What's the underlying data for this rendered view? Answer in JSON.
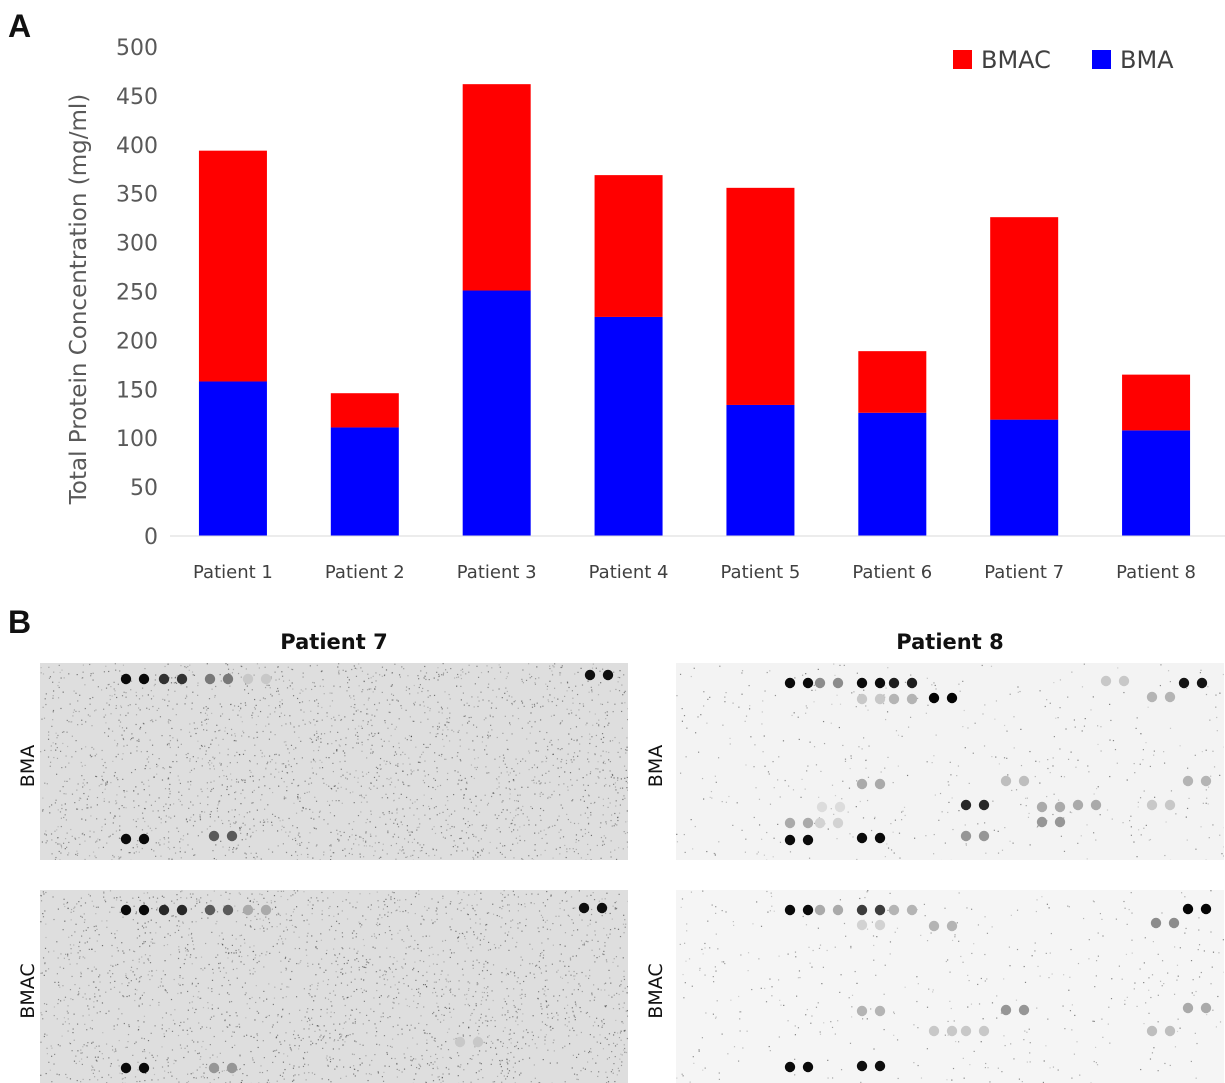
{
  "panels": {
    "a_label": "A",
    "b_label": "B"
  },
  "chart_data": {
    "type": "bar",
    "stacked": true,
    "categories": [
      "Patient 1",
      "Patient 2",
      "Patient 3",
      "Patient 4",
      "Patient 5",
      "Patient 6",
      "Patient 7",
      "Patient 8"
    ],
    "series": [
      {
        "name": "BMA",
        "color": "#0000ff",
        "values": [
          158,
          111,
          251,
          224,
          134,
          126,
          119,
          108
        ]
      },
      {
        "name": "BMAC",
        "color": "#ff0000",
        "values": [
          236,
          35,
          211,
          145,
          222,
          63,
          207,
          57
        ]
      }
    ],
    "totals": [
      394,
      146,
      462,
      369,
      356,
      189,
      326,
      165
    ],
    "ylabel": "Total Protein Concentration (mg/ml)",
    "xlabel": "",
    "ylim": [
      0,
      500
    ],
    "yticks": [
      0,
      50,
      100,
      150,
      200,
      250,
      300,
      350,
      400,
      450,
      500
    ],
    "grid": false,
    "legend": {
      "placement": "top-right",
      "order": [
        "BMAC",
        "BMA"
      ]
    }
  },
  "blots": {
    "columns": [
      "Patient 7",
      "Patient 8"
    ],
    "rows": [
      "BMA",
      "BMAC"
    ]
  }
}
